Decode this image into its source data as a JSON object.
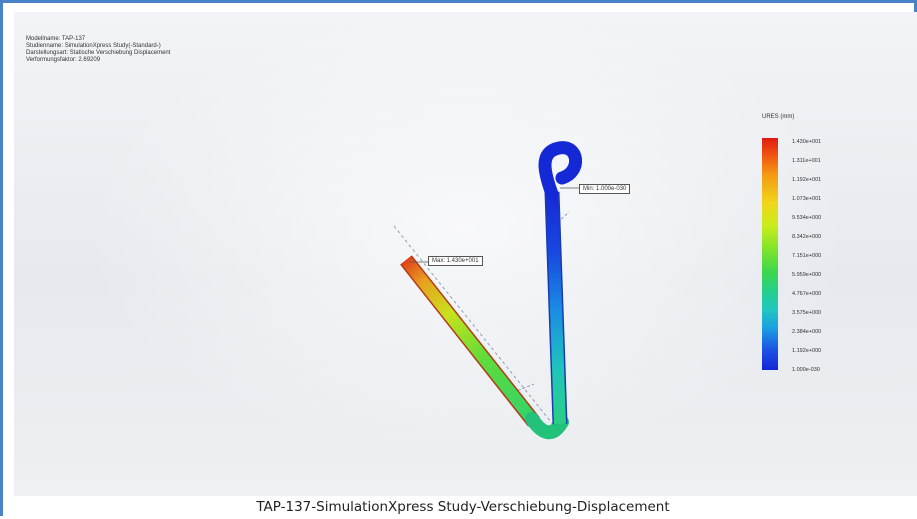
{
  "info": {
    "model_name": "Modellname: TAP-137",
    "study_name": "Studienname: SimulationXpress Study(-Standard-)",
    "plot_type": "Darstellungsart: Statische Verschiebung Displacement",
    "deformation_factor": "Verformungsfaktor: 2.69209"
  },
  "legend": {
    "title": "URES (mm)",
    "labels": [
      "1.430e+001",
      "1.311e+001",
      "1.192e+001",
      "1.073e+001",
      "9.534e+000",
      "8.342e+000",
      "7.151e+000",
      "5.959e+000",
      "4.767e+000",
      "3.575e+000",
      "2.384e+000",
      "1.192e+000",
      "1.000e-030"
    ],
    "colors": [
      "#e01a0f",
      "#f49a15",
      "#f0d61a",
      "#7fe42a",
      "#25cf8a",
      "#1fc7c1",
      "#1a9fe0",
      "#1425d8"
    ]
  },
  "callouts": {
    "max": "Max: 1.430e+001",
    "min": "Min: 1.000e-030"
  },
  "caption": "TAP-137-SimulationXpress Study-Verschiebung-Displacement"
}
